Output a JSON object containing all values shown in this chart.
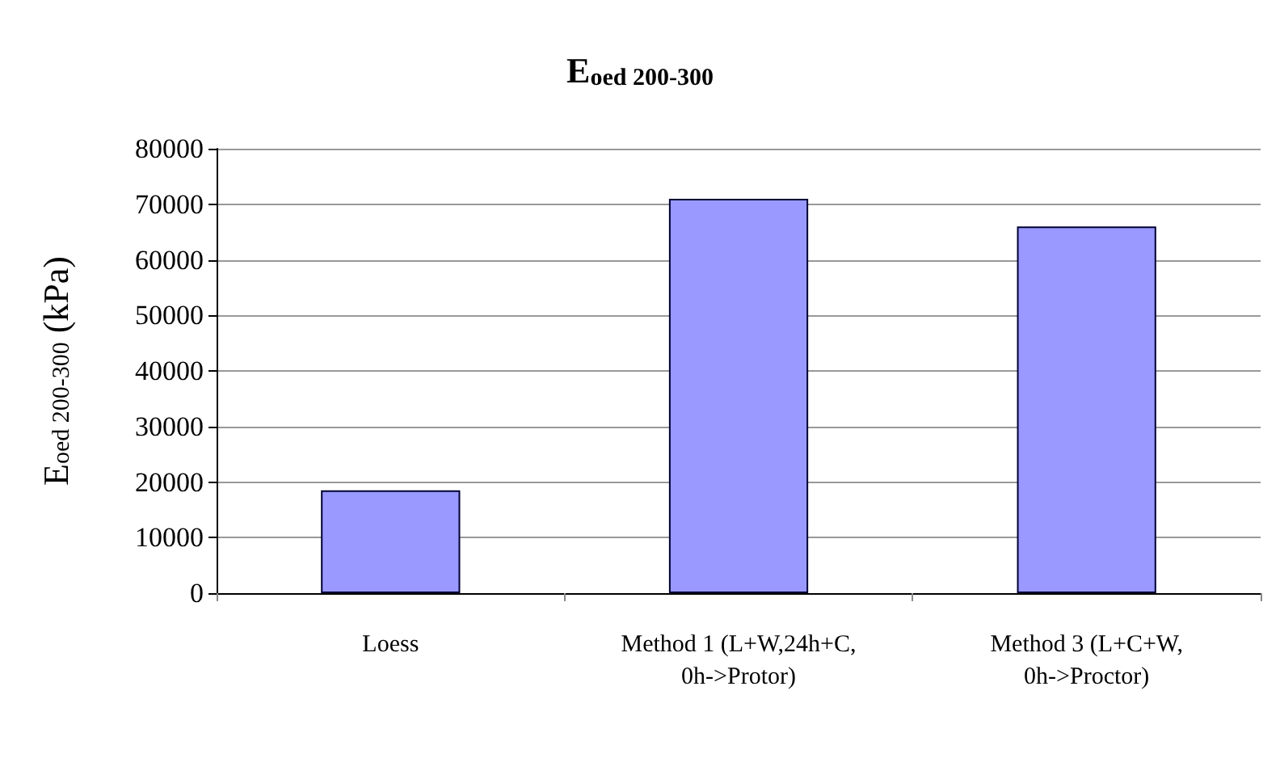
{
  "chart_data": {
    "type": "bar",
    "title": "E$_{oed 200-300}$",
    "ylabel": "E$_{oed 200-300}$ (kPa)",
    "categories": [
      "Loess",
      "Method 1 (L+W,24h+C,0h->Protor)",
      "Method 3 (L+C+W,0h->Proctor)"
    ],
    "values": [
      18500,
      71000,
      66000
    ],
    "color": "#9999ff",
    "ylim": [
      0,
      80000
    ],
    "yticks": [
      0,
      10000,
      20000,
      30000,
      40000,
      50000,
      60000,
      70000,
      80000
    ],
    "grid": "y"
  }
}
